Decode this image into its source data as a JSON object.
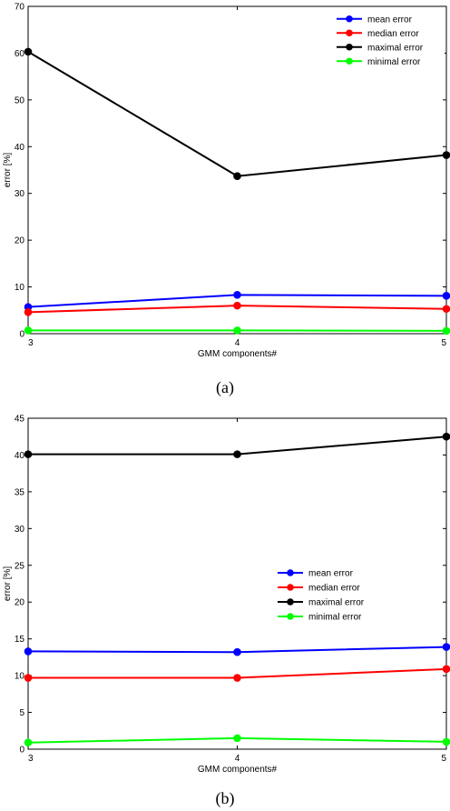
{
  "chart_data": [
    {
      "type": "line",
      "panel_label": "(a)",
      "x": [
        3,
        4,
        5
      ],
      "xlim": [
        3,
        5
      ],
      "ylim": [
        0,
        70
      ],
      "xticks": [
        "3",
        "4",
        "5"
      ],
      "yticks": [
        "0",
        "10",
        "20",
        "30",
        "40",
        "50",
        "60",
        "70"
      ],
      "xlabel": "GMM components#",
      "ylabel": "error [%]",
      "grid": false,
      "legend_position": "top-right",
      "series": [
        {
          "name": "mean error",
          "color": "#0000ff",
          "values": [
            5.7,
            8.3,
            8.1
          ]
        },
        {
          "name": "median error",
          "color": "#ff0000",
          "values": [
            4.6,
            6.0,
            5.3
          ]
        },
        {
          "name": "maximal error",
          "color": "#000000",
          "values": [
            60.3,
            33.7,
            38.2
          ]
        },
        {
          "name": "minimal error",
          "color": "#00ff00",
          "values": [
            0.7,
            0.7,
            0.6
          ]
        }
      ]
    },
    {
      "type": "line",
      "panel_label": "(b)",
      "x": [
        3,
        4,
        5
      ],
      "xlim": [
        3,
        5
      ],
      "ylim": [
        0,
        45
      ],
      "xticks": [
        "3",
        "4",
        "5"
      ],
      "yticks": [
        "0",
        "5",
        "10",
        "15",
        "20",
        "25",
        "30",
        "35",
        "40",
        "45"
      ],
      "xlabel": "GMM components#",
      "ylabel": "error [%]",
      "grid": false,
      "legend_position": "center-right",
      "series": [
        {
          "name": "mean error",
          "color": "#0000ff",
          "values": [
            13.3,
            13.2,
            13.9
          ]
        },
        {
          "name": "median error",
          "color": "#ff0000",
          "values": [
            9.7,
            9.7,
            10.9
          ]
        },
        {
          "name": "maximal error",
          "color": "#000000",
          "values": [
            40.1,
            40.1,
            42.5
          ]
        },
        {
          "name": "minimal error",
          "color": "#00ff00",
          "values": [
            0.9,
            1.5,
            1.0
          ]
        }
      ]
    }
  ]
}
